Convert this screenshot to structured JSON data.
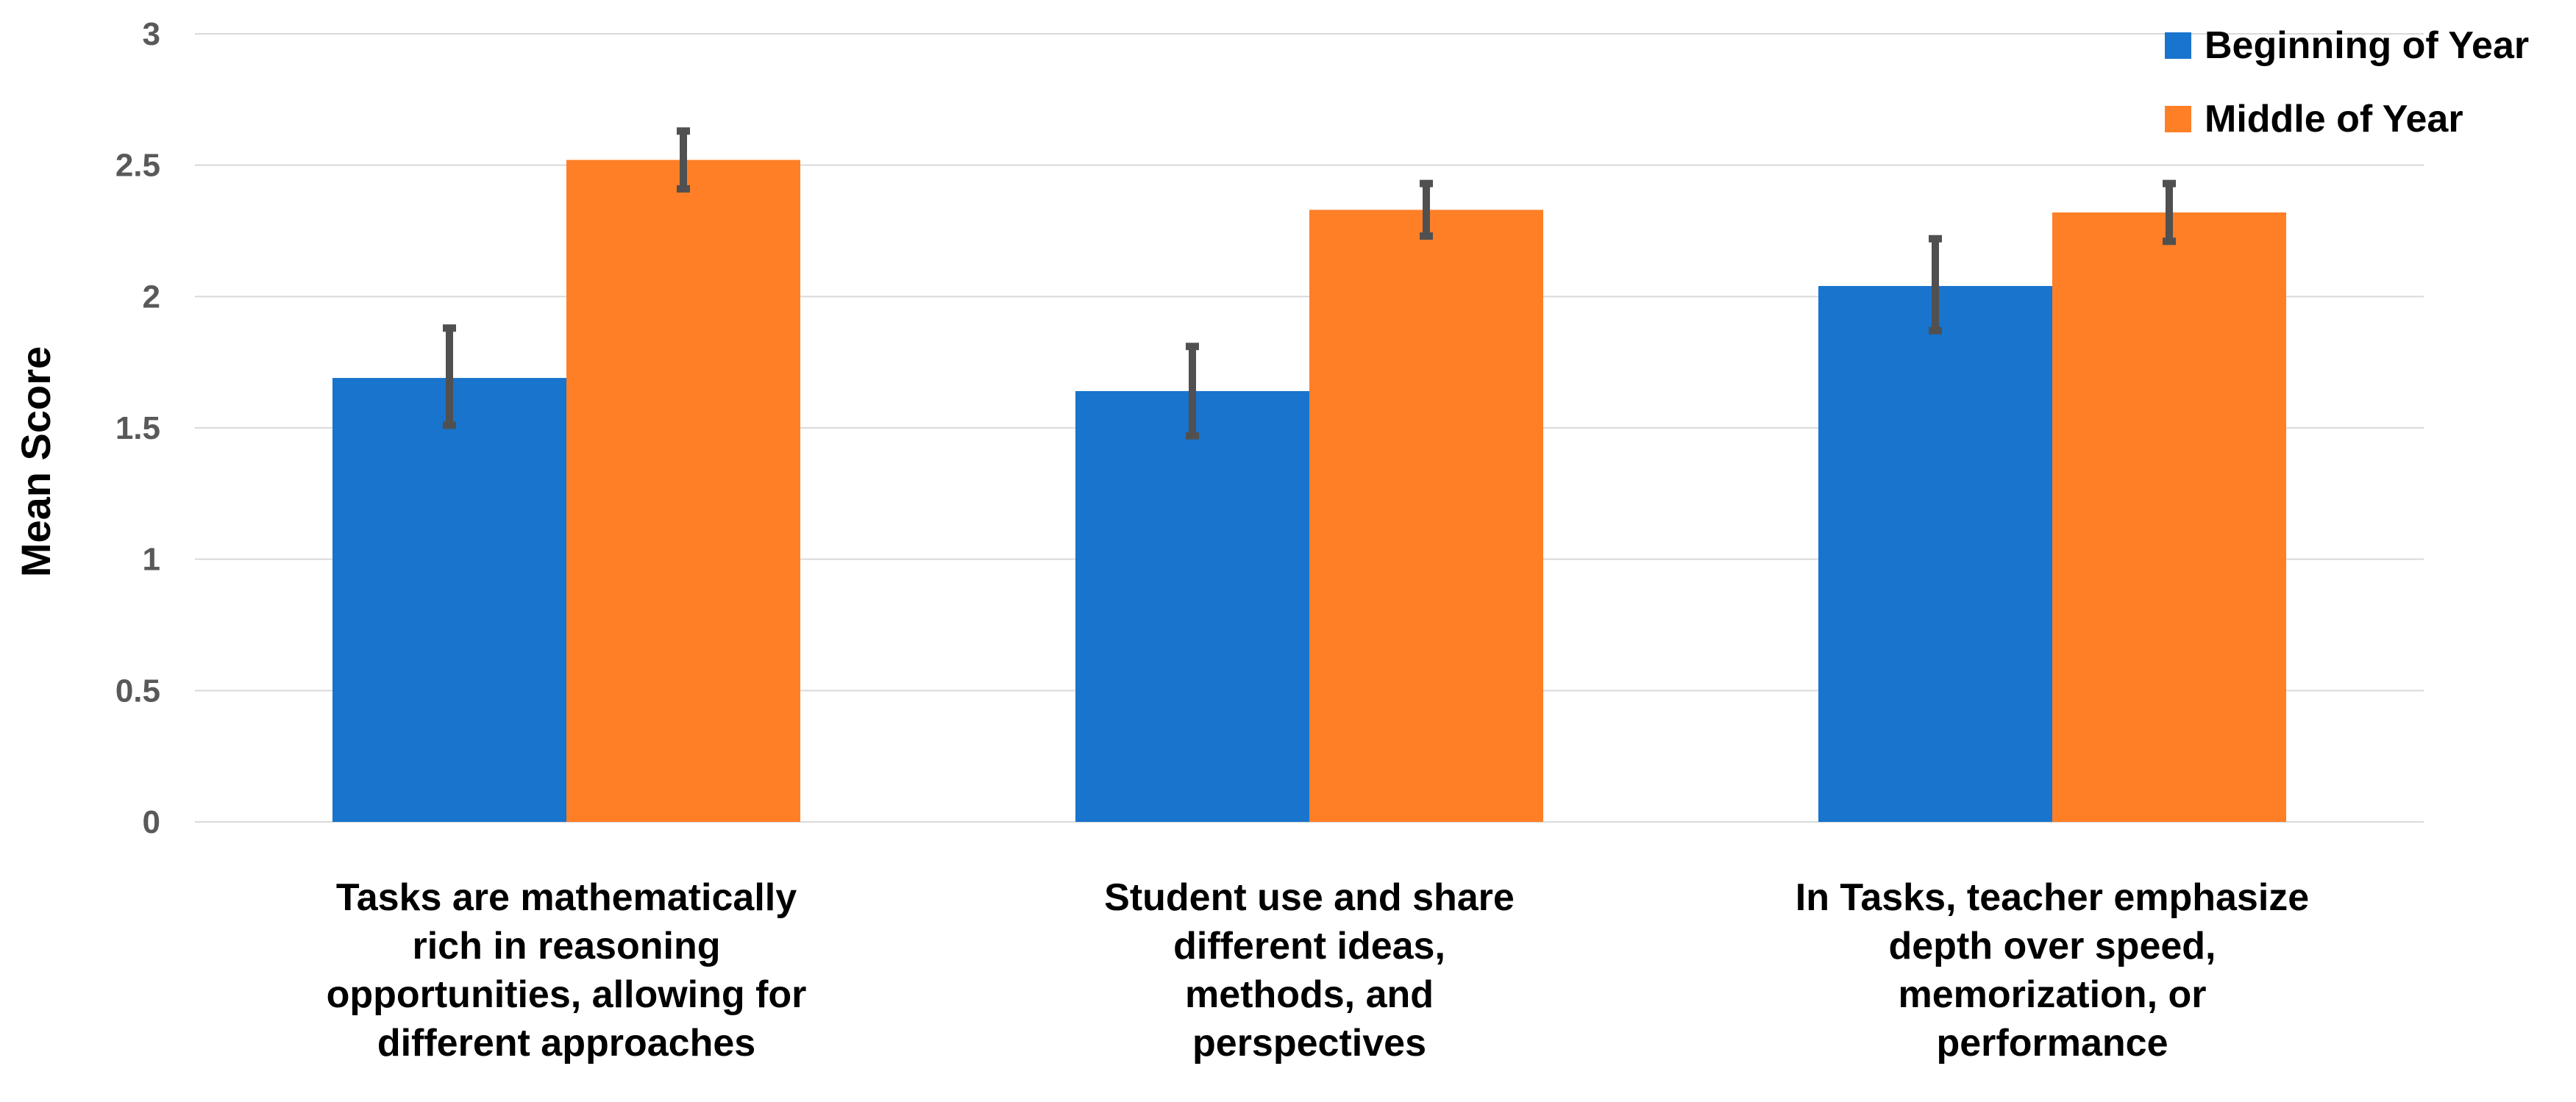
{
  "chart_data": {
    "type": "bar",
    "title": "",
    "xlabel": "",
    "ylabel": "Mean Score",
    "ylim": [
      0,
      3
    ],
    "yticks": [
      "0",
      "0.5",
      "1",
      "1.5",
      "2",
      "2.5",
      "3"
    ],
    "grid": true,
    "legend_position": "top-right",
    "categories": [
      [
        "Tasks are mathematically",
        "rich in reasoning",
        "opportunities, allowing for",
        "different approaches"
      ],
      [
        "Student use and share",
        "different ideas,",
        "methods, and",
        "perspectives"
      ],
      [
        "In Tasks, teacher emphasize",
        "depth over speed,",
        "memorization, or",
        "performance"
      ]
    ],
    "series": [
      {
        "name": "Beginning of Year",
        "color": "#1874CD",
        "values": [
          1.69,
          1.64,
          2.04
        ],
        "error_low": [
          1.51,
          1.47,
          1.87
        ],
        "error_high": [
          1.88,
          1.81,
          2.22
        ]
      },
      {
        "name": "Middle of Year",
        "color": "#FF7F27",
        "values": [
          2.52,
          2.33,
          2.32
        ],
        "error_low": [
          2.41,
          2.23,
          2.21
        ],
        "error_high": [
          2.63,
          2.43,
          2.43
        ]
      }
    ]
  }
}
